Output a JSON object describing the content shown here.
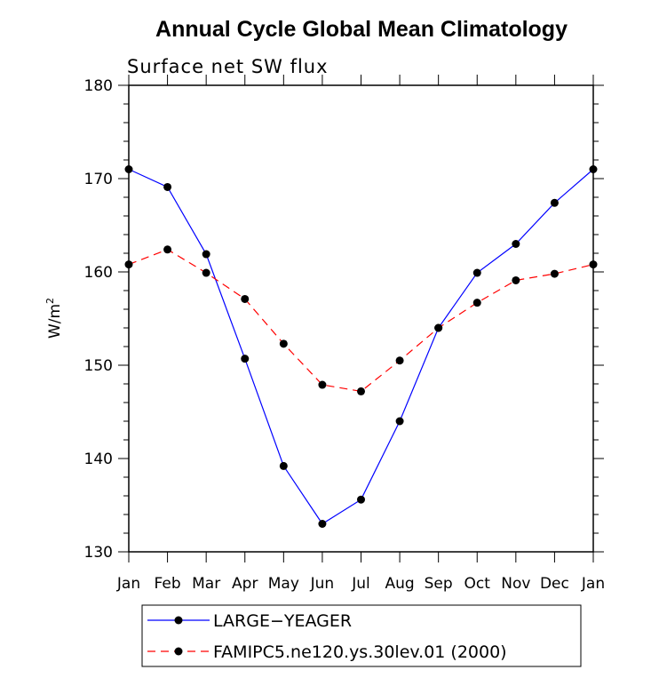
{
  "chart_data": {
    "type": "line",
    "title": "Annual Cycle Global Mean Climatology",
    "subtitle": "Surface net SW flux",
    "xlabel": "",
    "ylabel": "W/m",
    "ylabel_superscript": "2",
    "categories": [
      "Jan",
      "Feb",
      "Mar",
      "Apr",
      "May",
      "Jun",
      "Jul",
      "Aug",
      "Sep",
      "Oct",
      "Nov",
      "Dec",
      "Jan"
    ],
    "ylim": [
      130,
      180
    ],
    "yticks": [
      130,
      140,
      150,
      160,
      170,
      180
    ],
    "grid": false,
    "legend_position": "bottom",
    "series": [
      {
        "name": "LARGE−YEAGER",
        "color": "#0000ff",
        "dash": "solid",
        "values": [
          171.0,
          169.1,
          161.9,
          150.7,
          139.2,
          133.0,
          135.6,
          144.0,
          154.0,
          159.9,
          163.0,
          167.4,
          171.0
        ]
      },
      {
        "name": "FAMIPC5.ne120.ys.30lev.01 (2000)",
        "color": "#ff0000",
        "dash": "dashed",
        "values": [
          160.8,
          162.4,
          159.9,
          157.1,
          152.3,
          147.9,
          147.2,
          150.5,
          154.0,
          156.7,
          159.1,
          159.8,
          160.8
        ]
      }
    ]
  }
}
